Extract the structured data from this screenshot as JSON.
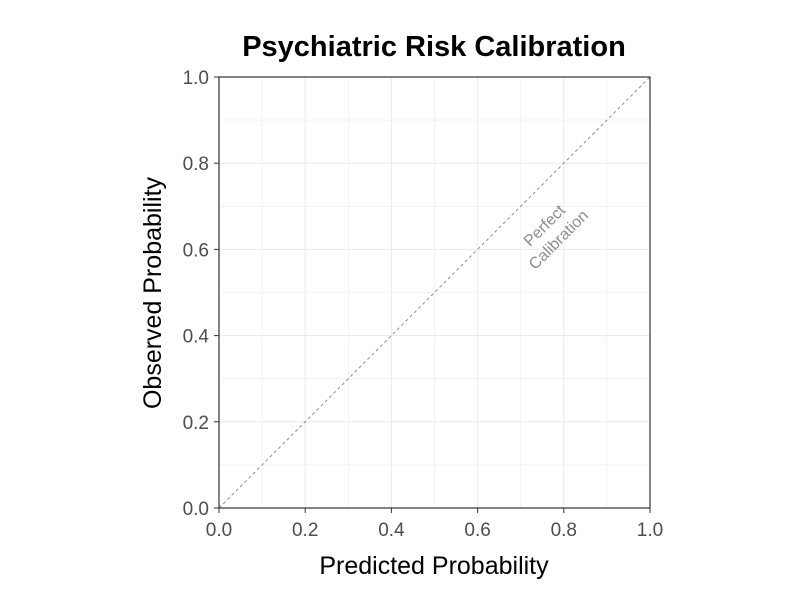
{
  "chart_data": {
    "type": "line",
    "title": "Psychiatric Risk Calibration",
    "xlabel": "Predicted Probability",
    "ylabel": "Observed Probability",
    "xlim": [
      0,
      1
    ],
    "ylim": [
      0,
      1
    ],
    "xticks": [
      "0.0",
      "0.2",
      "0.4",
      "0.6",
      "0.8",
      "1.0"
    ],
    "yticks": [
      "0.0",
      "0.2",
      "0.4",
      "0.6",
      "0.8",
      "1.0"
    ],
    "grid": true,
    "reference_line": {
      "x": [
        0,
        1
      ],
      "y": [
        0,
        1
      ],
      "style": "dashed"
    },
    "annotation": {
      "lines": [
        "Perfect",
        "Calibration"
      ],
      "x": 0.77,
      "y": 0.64,
      "angle": 45
    },
    "series": [],
    "colors": {
      "grid": "#ebebeb",
      "reference": "#8c8c8c",
      "frame": "#333333"
    }
  }
}
